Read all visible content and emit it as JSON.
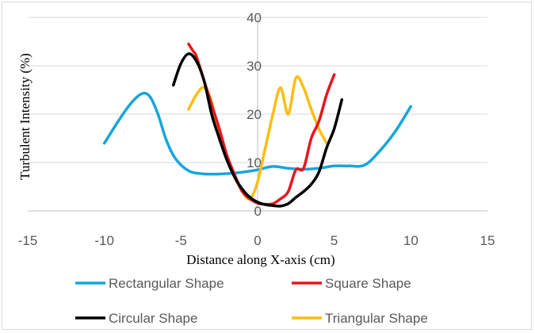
{
  "chart_data": {
    "type": "line",
    "title": "",
    "xlabel": "Distance along X-axis (cm)",
    "ylabel": "Turbulent Intensity (%)",
    "xlim": [
      -15,
      15
    ],
    "ylim": [
      0,
      40
    ],
    "xticks": [
      -15,
      -10,
      -5,
      0,
      5,
      10,
      15
    ],
    "yticks": [
      0,
      10,
      20,
      30,
      40
    ],
    "xtick_labels": [
      "-15",
      "-10",
      "-5",
      "0",
      "5",
      "10",
      "15"
    ],
    "ytick_labels": [
      "0",
      "10",
      "20",
      "30",
      "40"
    ],
    "grid": "horizontal",
    "legend_position": "bottom",
    "series": [
      {
        "name": "Rectangular Shape",
        "color": "#16a6dc",
        "x": [
          -10,
          -9,
          -8.2,
          -7.5,
          -7,
          -6.5,
          -6,
          -5.5,
          -5,
          -4.5,
          -4,
          -3,
          -2,
          -1,
          0,
          1,
          2,
          3,
          4,
          5,
          6,
          7,
          8,
          9,
          10
        ],
        "y": [
          14,
          19,
          22.5,
          24.3,
          23.5,
          20,
          15,
          11.5,
          9.5,
          8.3,
          7.8,
          7.6,
          7.7,
          8,
          8.5,
          9.2,
          8.8,
          8.6,
          8.8,
          9.3,
          9.3,
          9.5,
          12.5,
          16.5,
          21.6
        ]
      },
      {
        "name": "Square Shape",
        "color": "#e8161d",
        "x": [
          -4.5,
          -4.2,
          -4,
          -3.5,
          -3,
          -2.5,
          -2,
          -1.5,
          -1,
          -0.5,
          0,
          0.5,
          1,
          1.5,
          2,
          2.5,
          3,
          3.5,
          4,
          4.5,
          5
        ],
        "y": [
          34.5,
          33,
          32,
          27,
          22,
          17,
          11.5,
          7.5,
          4,
          2.5,
          1.6,
          1.4,
          1.5,
          2.5,
          4,
          8.5,
          8.8,
          15,
          18.5,
          24,
          28.2
        ]
      },
      {
        "name": "Circular Shape",
        "color": "#000000",
        "x": [
          -5.5,
          -5,
          -4.5,
          -4,
          -3.5,
          -3,
          -2.5,
          -2,
          -1.5,
          -1,
          -0.5,
          0,
          0.5,
          1,
          1.5,
          2,
          2.5,
          3,
          3.5,
          4,
          4.5,
          5,
          5.5
        ],
        "y": [
          26,
          30.5,
          32.5,
          31,
          27,
          20,
          15,
          10.5,
          7,
          4.5,
          2.8,
          1.8,
          1.3,
          1.1,
          1,
          1.5,
          2.8,
          4,
          5.5,
          8,
          13,
          17,
          23
        ]
      },
      {
        "name": "Triangular Shape",
        "color": "#fdbd13",
        "x": [
          -4.5,
          -4,
          -3.5,
          -3,
          -2.5,
          -2,
          -1.5,
          -1,
          -0.5,
          0,
          0.5,
          1,
          1.5,
          2,
          2.5,
          3,
          3.5,
          4,
          4.5
        ],
        "y": [
          21,
          24,
          25.5,
          22.5,
          15,
          11,
          7,
          4,
          2.5,
          6,
          13,
          20,
          25.5,
          20,
          27.5,
          25.5,
          21,
          17,
          14
        ]
      }
    ]
  }
}
